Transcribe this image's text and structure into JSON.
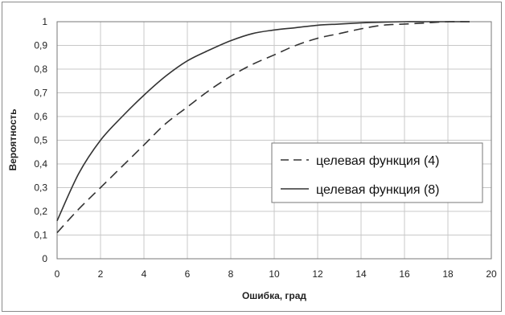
{
  "chart_data": {
    "type": "line",
    "xlabel": "Ошибка, град",
    "ylabel": "Вероятность",
    "xlim": [
      0,
      20
    ],
    "ylim": [
      0,
      1
    ],
    "x_ticks": [
      "0",
      "2",
      "4",
      "6",
      "8",
      "10",
      "12",
      "14",
      "16",
      "18",
      "20"
    ],
    "y_ticks": [
      "0",
      "0,1",
      "0,2",
      "0,3",
      "0,4",
      "0,5",
      "0,6",
      "0,7",
      "0,8",
      "0,9",
      "1"
    ],
    "grid": true,
    "legend_position": "right",
    "series": [
      {
        "name": "целевая функция (4)",
        "style": "dashed",
        "color": "#333333",
        "x": [
          0,
          1,
          2,
          3,
          4,
          5,
          6,
          7,
          8,
          9,
          10,
          11,
          12,
          13,
          14,
          15,
          16,
          17,
          18,
          19
        ],
        "y": [
          0.11,
          0.21,
          0.3,
          0.39,
          0.48,
          0.57,
          0.64,
          0.71,
          0.77,
          0.82,
          0.86,
          0.9,
          0.93,
          0.95,
          0.97,
          0.985,
          0.99,
          0.995,
          1.0,
          1.0
        ]
      },
      {
        "name": "целевая функция (8)",
        "style": "solid",
        "color": "#333333",
        "x": [
          0,
          1,
          2,
          3,
          4,
          5,
          6,
          7,
          8,
          9,
          10,
          11,
          12,
          13,
          14,
          15,
          16,
          17,
          18,
          19
        ],
        "y": [
          0.16,
          0.36,
          0.5,
          0.6,
          0.69,
          0.77,
          0.835,
          0.88,
          0.92,
          0.95,
          0.965,
          0.975,
          0.985,
          0.99,
          0.995,
          0.998,
          1.0,
          1.0,
          1.0,
          1.0
        ]
      }
    ]
  }
}
